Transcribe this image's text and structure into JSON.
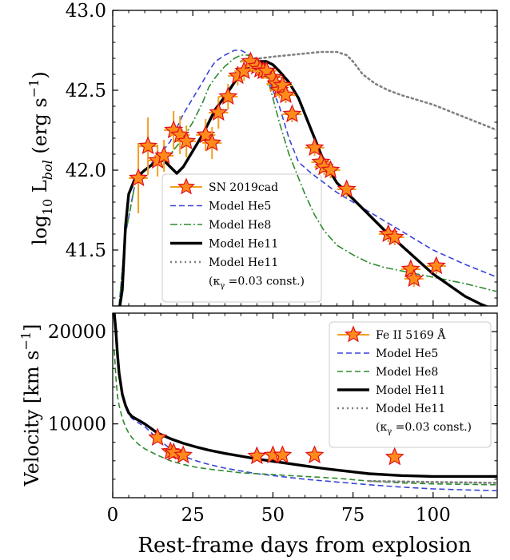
{
  "chart_data": [
    {
      "type": "line",
      "panel": "top",
      "ylabel": "log10 L_bol (erg s^-1)",
      "ylabel_parts": {
        "pre": "log",
        "sub1": "10",
        "mid": " L",
        "sub2": "bol",
        "unit_open": " (erg s",
        "sup": "−1",
        "unit_close": ")"
      },
      "xlim": [
        0,
        120
      ],
      "ylim": [
        41.15,
        43.0
      ],
      "yticks": [
        {
          "v": 41.5,
          "label": "41.5"
        },
        {
          "v": 42.0,
          "label": "42.0"
        },
        {
          "v": 42.5,
          "label": "42.5"
        },
        {
          "v": 43.0,
          "label": "43.0"
        }
      ],
      "xticks": [
        0,
        25,
        50,
        75,
        100
      ],
      "legend_position": "lower-center",
      "legend": [
        {
          "key": "obs",
          "label": "SN 2019cad"
        },
        {
          "key": "He5",
          "label": "Model He5"
        },
        {
          "key": "He8",
          "label": "Model He8"
        },
        {
          "key": "He11",
          "label": "Model He11"
        },
        {
          "key": "He11k",
          "label": "Model He11"
        }
      ],
      "legend_note": "(κγ =0.03 const.)",
      "legend_note_parts": {
        "open": "(κ",
        "sub": "γ",
        "close": " =0.03 const.)"
      },
      "observations": [
        {
          "x": 8,
          "y": 41.95,
          "xerr": 3,
          "yerr": 0.22
        },
        {
          "x": 11,
          "y": 42.15,
          "xerr": 3,
          "yerr": 0.18
        },
        {
          "x": 14,
          "y": 42.06,
          "xerr": 3,
          "yerr": 0.1
        },
        {
          "x": 16,
          "y": 42.09,
          "xerr": 3,
          "yerr": 0.1
        },
        {
          "x": 19,
          "y": 42.25,
          "xerr": 3,
          "yerr": 0.12
        },
        {
          "x": 21,
          "y": 42.22,
          "xerr": 3,
          "yerr": 0.12
        },
        {
          "x": 23,
          "y": 42.18,
          "xerr": 3,
          "yerr": 0.1
        },
        {
          "x": 29,
          "y": 42.22,
          "xerr": 3,
          "yerr": 0.1
        },
        {
          "x": 31,
          "y": 42.17,
          "xerr": 3,
          "yerr": 0.1
        },
        {
          "x": 33,
          "y": 42.36,
          "xerr": 3,
          "yerr": 0.1
        },
        {
          "x": 36,
          "y": 42.46,
          "xerr": 3,
          "yerr": 0.08
        },
        {
          "x": 39,
          "y": 42.59,
          "xerr": 3,
          "yerr": 0.06
        },
        {
          "x": 41,
          "y": 42.62,
          "xerr": 3,
          "yerr": 0.06
        },
        {
          "x": 43,
          "y": 42.68,
          "xerr": 3,
          "yerr": 0.05
        },
        {
          "x": 45,
          "y": 42.65,
          "xerr": 3,
          "yerr": 0.05
        },
        {
          "x": 46,
          "y": 42.63,
          "xerr": 3,
          "yerr": 0.05
        },
        {
          "x": 47,
          "y": 42.62,
          "xerr": 3,
          "yerr": 0.05
        },
        {
          "x": 48,
          "y": 42.62,
          "xerr": 3,
          "yerr": 0.05
        },
        {
          "x": 50,
          "y": 42.58,
          "xerr": 3,
          "yerr": 0.05
        },
        {
          "x": 51,
          "y": 42.54,
          "xerr": 3,
          "yerr": 0.05
        },
        {
          "x": 52,
          "y": 42.5,
          "xerr": 3,
          "yerr": 0.05
        },
        {
          "x": 53,
          "y": 42.53,
          "xerr": 3,
          "yerr": 0.05
        },
        {
          "x": 54,
          "y": 42.47,
          "xerr": 3,
          "yerr": 0.05
        },
        {
          "x": 56,
          "y": 42.35,
          "xerr": 3,
          "yerr": 0.05
        },
        {
          "x": 63,
          "y": 42.14,
          "xerr": 3,
          "yerr": 0.05
        },
        {
          "x": 65,
          "y": 42.05,
          "xerr": 3,
          "yerr": 0.05
        },
        {
          "x": 66,
          "y": 42.02,
          "xerr": 3,
          "yerr": 0.05
        },
        {
          "x": 68,
          "y": 42.0,
          "xerr": 3,
          "yerr": 0.05
        },
        {
          "x": 73,
          "y": 41.88,
          "xerr": 3,
          "yerr": 0.05
        },
        {
          "x": 86,
          "y": 41.6,
          "xerr": 3,
          "yerr": 0.05
        },
        {
          "x": 88,
          "y": 41.58,
          "xerr": 3,
          "yerr": 0.05
        },
        {
          "x": 93,
          "y": 41.38,
          "xerr": 3,
          "yerr": 0.05
        },
        {
          "x": 94,
          "y": 41.32,
          "xerr": 3,
          "yerr": 0.05
        },
        {
          "x": 101,
          "y": 41.4,
          "xerr": 3,
          "yerr": 0.05
        }
      ],
      "series": [
        {
          "key": "He5",
          "color": "#3a44d8",
          "dash": "dashed",
          "x": [
            2,
            4,
            7,
            10,
            14,
            18,
            22,
            25,
            28,
            30,
            32,
            35,
            38,
            40,
            42,
            45,
            48,
            50,
            52,
            55,
            58,
            62,
            66,
            70,
            75,
            80,
            85,
            90,
            95,
            100,
            110,
            120
          ],
          "y": [
            41.15,
            41.6,
            41.92,
            42.0,
            42.08,
            42.18,
            42.35,
            42.45,
            42.55,
            42.62,
            42.68,
            42.72,
            42.75,
            42.75,
            42.73,
            42.68,
            42.6,
            42.5,
            42.4,
            42.2,
            42.05,
            41.98,
            41.92,
            41.86,
            41.8,
            41.74,
            41.68,
            41.62,
            41.56,
            41.5,
            41.41,
            41.33
          ]
        },
        {
          "key": "He8",
          "color": "#2e8b2e",
          "dash": "dashdot",
          "x": [
            2,
            4,
            7,
            10,
            14,
            18,
            22,
            25,
            28,
            30,
            32,
            35,
            38,
            40,
            42,
            45,
            48,
            50,
            52,
            55,
            58,
            60,
            63,
            66,
            70,
            75,
            80,
            85,
            90,
            95,
            100,
            110,
            120
          ],
          "y": [
            41.15,
            41.6,
            41.92,
            42.0,
            42.05,
            42.1,
            42.2,
            42.3,
            42.42,
            42.52,
            42.58,
            42.65,
            42.7,
            42.72,
            42.72,
            42.7,
            42.6,
            42.45,
            42.3,
            42.1,
            41.95,
            41.85,
            41.72,
            41.62,
            41.53,
            41.47,
            41.42,
            41.39,
            41.37,
            41.35,
            41.33,
            41.29,
            41.24
          ]
        },
        {
          "key": "He11",
          "color": "#000000",
          "dash": "solid",
          "x": [
            1,
            2,
            3,
            4,
            5,
            7,
            10,
            14,
            16,
            18,
            20,
            22,
            25,
            28,
            30,
            32,
            35,
            38,
            40,
            42,
            45,
            48,
            50,
            52,
            55,
            58,
            62,
            66,
            70,
            75,
            80,
            85,
            90,
            95,
            100,
            105,
            110,
            115,
            120
          ],
          "y": [
            41.15,
            41.12,
            41.25,
            41.65,
            41.85,
            41.95,
            42.0,
            42.06,
            42.06,
            42.02,
            41.98,
            42.02,
            42.12,
            42.22,
            42.3,
            42.38,
            42.46,
            42.55,
            42.6,
            42.64,
            42.68,
            42.68,
            42.66,
            42.62,
            42.55,
            42.45,
            42.25,
            42.05,
            41.92,
            41.82,
            41.72,
            41.62,
            41.53,
            41.44,
            41.35,
            41.28,
            41.21,
            41.16,
            41.12
          ]
        },
        {
          "key": "He11k",
          "color": "#808080",
          "dash": "dotted",
          "x": [
            40,
            43,
            46,
            50,
            55,
            60,
            65,
            70,
            73,
            75,
            78,
            82,
            86,
            90,
            95,
            100,
            105,
            110,
            115,
            120
          ],
          "y": [
            42.68,
            42.7,
            42.7,
            42.71,
            42.72,
            42.73,
            42.74,
            42.74,
            42.72,
            42.68,
            42.6,
            42.54,
            42.5,
            42.47,
            42.44,
            42.41,
            42.37,
            42.33,
            42.29,
            42.25
          ]
        }
      ]
    },
    {
      "type": "line",
      "panel": "bottom",
      "ylabel": "Velocity [km s^-1]",
      "ylabel_parts": {
        "pre": "Velocity [km s",
        "sup": "−1",
        "close": "]"
      },
      "xlabel": "Rest-frame days from explosion",
      "xlim": [
        0,
        120
      ],
      "ylim": [
        2000,
        22000
      ],
      "yticks": [
        {
          "v": 10000,
          "label": "10000"
        },
        {
          "v": 20000,
          "label": "20000"
        }
      ],
      "xticks": [
        {
          "v": 0,
          "label": "0"
        },
        {
          "v": 25,
          "label": "25"
        },
        {
          "v": 50,
          "label": "50"
        },
        {
          "v": 75,
          "label": "75"
        },
        {
          "v": 100,
          "label": "100"
        }
      ],
      "legend_position": "upper-right",
      "legend": [
        {
          "key": "obs",
          "label": "Fe II 5169 Å"
        },
        {
          "key": "He5",
          "label": "Model He5"
        },
        {
          "key": "He8",
          "label": "Model He8"
        },
        {
          "key": "He11",
          "label": "Model He11"
        },
        {
          "key": "He11k",
          "label": "Model He11"
        }
      ],
      "legend_note": "(κγ =0.03 const.)",
      "legend_note_parts": {
        "open": "(κ",
        "sub": "γ",
        "close": " =0.03 const.)"
      },
      "observations": [
        {
          "x": 14,
          "y": 8500
        },
        {
          "x": 18,
          "y": 7000
        },
        {
          "x": 19,
          "y": 6900
        },
        {
          "x": 22,
          "y": 6600
        },
        {
          "x": 45,
          "y": 6500
        },
        {
          "x": 50,
          "y": 6600
        },
        {
          "x": 53,
          "y": 6600
        },
        {
          "x": 63,
          "y": 6600
        },
        {
          "x": 88,
          "y": 6400
        }
      ],
      "series": [
        {
          "key": "He5",
          "color": "#3a44d8",
          "dash": "dashed",
          "x": [
            0.5,
            1,
            1.5,
            2,
            3,
            4,
            5,
            6,
            8,
            10,
            14,
            18,
            22,
            26,
            30,
            35,
            40,
            45,
            50,
            55,
            60,
            70,
            80,
            90,
            100,
            110,
            120
          ],
          "y": [
            22000,
            20000,
            17500,
            15500,
            13000,
            11800,
            11000,
            10600,
            10100,
            9700,
            8400,
            7300,
            6500,
            6000,
            5600,
            5200,
            4900,
            4600,
            4400,
            4200,
            4000,
            3700,
            3400,
            3150,
            2950,
            2850,
            2750
          ]
        },
        {
          "key": "He8",
          "color": "#2e8b2e",
          "dash": "dashed",
          "x": [
            0.5,
            1,
            1.5,
            2,
            3,
            4,
            5,
            6,
            8,
            10,
            14,
            18,
            22,
            26,
            30,
            35,
            40,
            45,
            50,
            55,
            60,
            70,
            80,
            90,
            100,
            110,
            120
          ],
          "y": [
            18000,
            15000,
            13000,
            12000,
            10600,
            9700,
            9000,
            8500,
            7800,
            7300,
            6600,
            6000,
            5600,
            5300,
            5100,
            4900,
            4700,
            4600,
            4500,
            4400,
            4300,
            4100,
            3800,
            3600,
            3500,
            3450,
            3400
          ]
        },
        {
          "key": "He11",
          "color": "#000000",
          "dash": "solid",
          "x": [
            0.5,
            1,
            1.5,
            2,
            3,
            4,
            5,
            6,
            8,
            10,
            14,
            18,
            22,
            26,
            30,
            35,
            40,
            45,
            50,
            55,
            60,
            65,
            70,
            75,
            80,
            90,
            100,
            110,
            120
          ],
          "y": [
            22000,
            20000,
            17500,
            15500,
            13200,
            12000,
            11200,
            10800,
            10400,
            10000,
            9000,
            8400,
            7900,
            7500,
            7150,
            6800,
            6500,
            6200,
            5950,
            5700,
            5450,
            5200,
            5000,
            4800,
            4600,
            4400,
            4300,
            4300,
            4300
          ]
        },
        {
          "key": "He11k",
          "color": "#808080",
          "dash": "dotted",
          "x": [
            80,
            90,
            100,
            110,
            120
          ],
          "y": [
            3800,
            3750,
            3700,
            3650,
            3600
          ]
        }
      ]
    }
  ]
}
